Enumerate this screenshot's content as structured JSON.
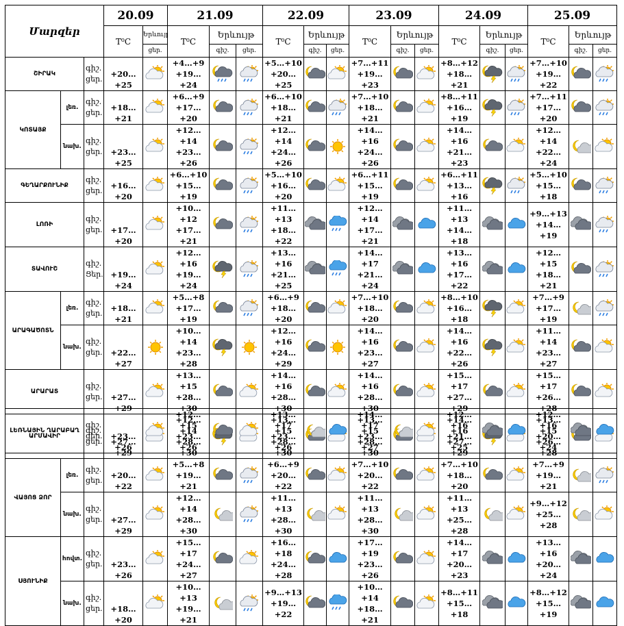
{
  "header": {
    "title": "Մարզեր",
    "dates": [
      "20.09",
      "21.09",
      "22.09",
      "23.09",
      "24.09",
      "25.09"
    ],
    "temp_label": "T⁰C",
    "phenomenon_label": "Երևույթ",
    "night_label": "գիշ.",
    "day_label": "ցեր."
  },
  "regions": [
    {
      "name": "ՇԻՐԱԿ",
      "zones": [
        {
          "periods": [
            "գիշ.",
            "ցեր."
          ],
          "temps": [
            [
              "+20…+25"
            ],
            [
              "+4…+9",
              "+19…+24"
            ],
            [
              "+5…+10",
              "+20…+25"
            ],
            [
              "+7…+11",
              "+19…+23"
            ],
            [
              "+8…+12",
              "+18…+21"
            ],
            [
              "+7…+10",
              "+19…+22"
            ]
          ]
        }
      ]
    },
    {
      "name": "ԿՈՏԱՅՔ",
      "zones": [
        {
          "zone": "լեռ.",
          "periods": [
            "գիշ.",
            "ցեր."
          ],
          "temps": [
            [
              "+18…+21"
            ],
            [
              "+6…+9",
              "+17…+20"
            ],
            [
              "+6…+10",
              "+18…+21"
            ],
            [
              "+7…+10",
              "+18…+21"
            ],
            [
              "+8…+11",
              "+16…+19"
            ],
            [
              "+7…+11",
              "+17…+20"
            ]
          ]
        },
        {
          "zone": "նախ.",
          "periods": [
            "գիշ.",
            "ցեր."
          ],
          "temps": [
            [
              "+23…+25"
            ],
            [
              "+12…+14",
              "+23…+26"
            ],
            [
              "+12…+14",
              "+24…+26"
            ],
            [
              "+14…+16",
              "+24…+26"
            ],
            [
              "+14…+16",
              "+21…+23"
            ],
            [
              "+12…+14",
              "+22…+24"
            ]
          ]
        }
      ]
    },
    {
      "name": "ԳԵՂԱՐՔՈՒՆԻՔ",
      "zones": [
        {
          "periods": [
            "գիշ.",
            "ցեր."
          ],
          "temps": [
            [
              "+16…+20"
            ],
            [
              "+6…+10",
              "+15…+19"
            ],
            [
              "+5…+10",
              "+16…+20"
            ],
            [
              "+6…+11",
              "+15…+19"
            ],
            [
              "+6…+11",
              "+13…+16"
            ],
            [
              "+5…+10",
              "+15…+18"
            ]
          ]
        }
      ]
    },
    {
      "name": "ԼՈՌԻ",
      "zones": [
        {
          "periods": [
            "գիշ.",
            "ցեր."
          ],
          "temps": [
            [
              "+17…+20"
            ],
            [
              "+10…+12",
              "+17…+21"
            ],
            [
              "+11…+13",
              "+18…+22"
            ],
            [
              "+12…+14",
              "+17…+21"
            ],
            [
              "+11…+13",
              "+14…+18"
            ],
            [
              "+9…+13",
              "+14…+19"
            ]
          ]
        }
      ]
    },
    {
      "name": "ՏԱՎՈՒՇ",
      "zones": [
        {
          "periods": [
            "գիշ.",
            "Ցեր."
          ],
          "temps": [
            [
              "+19…+24"
            ],
            [
              "+12…+16",
              "+19…+24"
            ],
            [
              "+13…+16",
              "+21…+25"
            ],
            [
              "+14…+17",
              "+21…+24"
            ],
            [
              "+13…+16",
              "+17…+22"
            ],
            [
              "+12…+15",
              "+18…+21"
            ]
          ]
        }
      ]
    },
    {
      "name": "ԱՐԱԳԱԾՈՏՆ",
      "zones": [
        {
          "zone": "լեռ.",
          "periods": [
            "գիշ.",
            "ցեր."
          ],
          "temps": [
            [
              "+18…+21"
            ],
            [
              "+5…+8",
              "+17…+19"
            ],
            [
              "+6…+9",
              "+18…+20"
            ],
            [
              "+7…+10",
              "+18…+20"
            ],
            [
              "+8…+10",
              "+16…+18"
            ],
            [
              "+7…+9",
              "+17…+19"
            ]
          ]
        },
        {
          "zone": "նախ.",
          "periods": [
            "գիշ.",
            "ցեր."
          ],
          "temps": [
            [
              "+22…+27"
            ],
            [
              "+10…+14",
              "+23…+28"
            ],
            [
              "+12…+16",
              "+24…+29"
            ],
            [
              "+14…+16",
              "+23…+27"
            ],
            [
              "+14…+16",
              "+22…+26"
            ],
            [
              "+11…+14",
              "+23…+27"
            ]
          ]
        }
      ]
    },
    {
      "name": "ԱՐԱՐԱՏ",
      "zones": [
        {
          "periods": [
            "գիշ.",
            "ցեր."
          ],
          "temps": [
            [
              "+27…+29"
            ],
            [
              "+13…+15",
              "+28…+30"
            ],
            [
              "+14…+16",
              "+28…+30"
            ],
            [
              "+14…+16",
              "+28…+30"
            ],
            [
              "+15…+17",
              "+27…+29"
            ],
            [
              "+15…+17",
              "+26…+28"
            ]
          ]
        }
      ]
    },
    {
      "name": "ԱՐՄԱՎԻՐ",
      "zones": [
        {
          "periods": [
            "գիշ.",
            "ցեր."
          ],
          "temps": [
            [
              "+27…+29"
            ],
            [
              "+12…+14",
              "+28…+30"
            ],
            [
              "+13…+15",
              "+28…+30"
            ],
            [
              "+13…+15",
              "+28…+30"
            ],
            [
              "+14…+16",
              "+27…+29"
            ],
            [
              "+13…+15",
              "+26…+28"
            ]
          ]
        }
      ]
    },
    {
      "name": "ՎԱՅՈՑ ՁՈՐ",
      "zones": [
        {
          "zone": "լեռ.",
          "periods": [
            "գիշ.",
            "ցեր."
          ],
          "temps": [
            [
              "+20…+22"
            ],
            [
              "+5…+8",
              "+19…+21"
            ],
            [
              "+6…+9",
              "+20…+22"
            ],
            [
              "+7…+10",
              "+20…+22"
            ],
            [
              "+7…+10",
              "+18…+20"
            ],
            [
              "+7…+9",
              "+19…+21"
            ]
          ]
        },
        {
          "zone": "նախ.",
          "periods": [
            "գիշ.",
            "ցեր."
          ],
          "temps": [
            [
              "+27…+29"
            ],
            [
              "+12…+14",
              "+28…+30"
            ],
            [
              "+11…+13",
              "+28…+30"
            ],
            [
              "+11…+13",
              "+28…+30"
            ],
            [
              "+11…+13",
              "+25…+28"
            ],
            [
              "+9…+12",
              "+25…+28"
            ]
          ]
        }
      ]
    },
    {
      "name": "ՍՅՈՒՆԻՔ",
      "zones": [
        {
          "zone": "հովտ.",
          "periods": [
            "գիշ.",
            "ցեր."
          ],
          "temps": [
            [
              "+23…+26"
            ],
            [
              "+15…+17",
              "+24…+27"
            ],
            [
              "+16…+18",
              "+24…+28"
            ],
            [
              "+17…+19",
              "+23…+26"
            ],
            [
              "+14…+17",
              "+20…+23"
            ],
            [
              "+13…+16",
              "+20…+24"
            ]
          ]
        },
        {
          "zone": "նախ.",
          "periods": [
            "գիշ.",
            "ցեր."
          ],
          "temps": [
            [
              "+18…+20"
            ],
            [
              "+10…+13",
              "+19…+21"
            ],
            [
              "+9…+13",
              "+19…+22"
            ],
            [
              "+10…+14",
              "+18…+21"
            ],
            [
              "+8…+11",
              "+15…+18"
            ],
            [
              "+8…+12",
              "+15…+19"
            ]
          ]
        }
      ]
    }
  ],
  "extra_region": {
    "name": "ԼԵՌՆԱՅԻՆ ՂԱՐԱԲԱՂ",
    "periods": [
      "գիշ.",
      "ցեր."
    ],
    "temps": [
      [
        "+23…+26"
      ],
      [
        "+12…+15",
        "+23…+26"
      ],
      [
        "+13…+17",
        "+23…+26"
      ],
      [
        "+14…+17",
        "+23…+27"
      ],
      [
        "+12…+16",
        "+21…+25"
      ],
      [
        "+12…+16",
        "+20…+24"
      ]
    ]
  }
}
